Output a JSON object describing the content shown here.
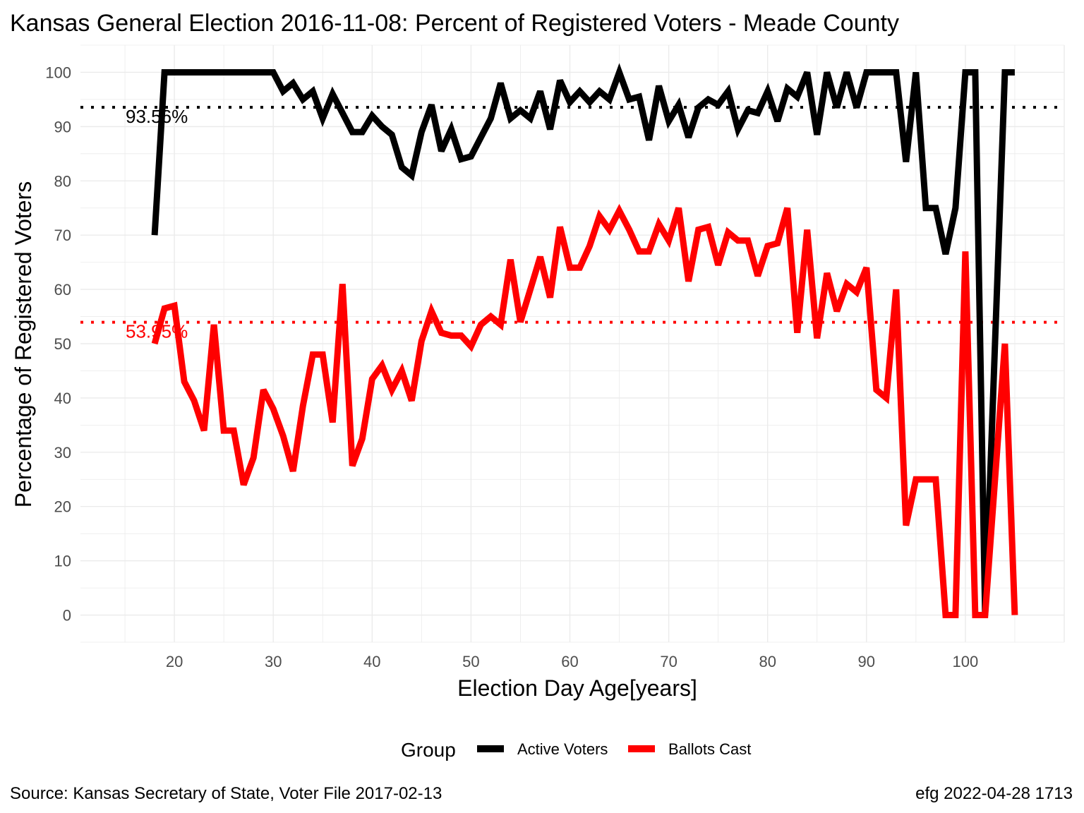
{
  "chart_data": {
    "type": "line",
    "title": "Kansas General Election 2016-11-08:  Percent of Registered Voters - Meade County",
    "xlabel": "Election Day Age[years]",
    "ylabel": "Percentage of Registered Voters",
    "xlim": [
      10.5,
      110
    ],
    "ylim": [
      -5,
      105
    ],
    "x_ticks": [
      20,
      30,
      40,
      50,
      60,
      70,
      80,
      90,
      100
    ],
    "y_ticks": [
      0,
      10,
      20,
      30,
      40,
      50,
      60,
      70,
      80,
      90,
      100
    ],
    "grid": true,
    "legend": {
      "title": "Group",
      "position": "bottom"
    },
    "series": [
      {
        "name": "Active Voters",
        "color": "#000000",
        "x": [
          18,
          19,
          20,
          21,
          22,
          23,
          24,
          25,
          26,
          27,
          28,
          29,
          30,
          31,
          32,
          33,
          34,
          35,
          36,
          37,
          38,
          39,
          40,
          41,
          42,
          43,
          44,
          45,
          46,
          47,
          48,
          49,
          50,
          51,
          52,
          53,
          54,
          55,
          56,
          57,
          58,
          59,
          60,
          61,
          62,
          63,
          64,
          65,
          66,
          67,
          68,
          69,
          70,
          71,
          72,
          73,
          74,
          75,
          76,
          77,
          78,
          79,
          80,
          81,
          82,
          83,
          84,
          85,
          86,
          87,
          88,
          89,
          90,
          91,
          92,
          93,
          94,
          95,
          96,
          97,
          98,
          99,
          100,
          101,
          102,
          103,
          104,
          105
        ],
        "values": [
          70,
          100,
          100,
          100,
          100,
          100,
          100,
          100,
          100,
          100,
          100,
          100,
          100,
          96.5,
          98,
          95,
          96.5,
          91.5,
          96,
          92.5,
          89,
          89,
          92,
          90,
          88.5,
          82.5,
          81,
          89,
          94,
          85.5,
          89.5,
          84,
          84.5,
          88,
          91.5,
          98,
          91.5,
          93,
          91.5,
          96.5,
          89.5,
          98.5,
          94.5,
          96.5,
          94.5,
          96.5,
          95,
          100,
          95,
          95.5,
          87.5,
          97.5,
          91,
          94,
          88,
          93.5,
          95,
          94,
          96.5,
          89.5,
          93,
          92.5,
          96.5,
          91,
          97,
          95.5,
          100,
          88.5,
          100,
          93.5,
          100,
          93.5,
          100,
          100,
          100,
          100,
          83.5,
          100,
          75,
          75,
          66.5,
          75,
          100,
          100,
          0,
          50,
          100,
          100
        ]
      },
      {
        "name": "Ballots Cast",
        "color": "#ff0000",
        "x": [
          18,
          19,
          20,
          21,
          22,
          23,
          24,
          25,
          26,
          27,
          28,
          29,
          30,
          31,
          32,
          33,
          34,
          35,
          36,
          37,
          38,
          39,
          40,
          41,
          42,
          43,
          44,
          45,
          46,
          47,
          48,
          49,
          50,
          51,
          52,
          53,
          54,
          55,
          56,
          57,
          58,
          59,
          60,
          61,
          62,
          63,
          64,
          65,
          66,
          67,
          68,
          69,
          70,
          71,
          72,
          73,
          74,
          75,
          76,
          77,
          78,
          79,
          80,
          81,
          82,
          83,
          84,
          85,
          86,
          87,
          88,
          89,
          90,
          91,
          92,
          93,
          94,
          95,
          96,
          97,
          98,
          99,
          100,
          101,
          102,
          103,
          104,
          105
        ],
        "values": [
          50,
          56.5,
          57,
          43,
          39.5,
          34,
          53.5,
          34,
          34,
          24,
          29,
          41.5,
          38,
          33,
          26.5,
          38.5,
          48,
          48,
          35.5,
          61,
          27.5,
          32.5,
          43.5,
          46,
          41.5,
          45,
          39.5,
          50.5,
          56,
          52,
          51.5,
          51.5,
          49.5,
          53.5,
          55,
          53.5,
          65.5,
          54,
          60,
          66,
          58.5,
          71.5,
          64,
          64,
          68,
          73.5,
          71,
          74.5,
          71,
          67,
          67,
          72,
          69,
          75,
          61.5,
          71,
          71.5,
          64.5,
          70.5,
          69,
          69,
          62.5,
          68,
          68.5,
          75,
          52,
          71,
          51,
          63,
          56,
          61,
          59.5,
          64,
          41.5,
          40,
          60,
          16.5,
          25,
          25,
          25,
          0,
          0,
          67,
          0,
          0,
          25,
          50,
          0
        ]
      }
    ],
    "reference_lines": [
      {
        "value": 93.56,
        "label": "93.56%",
        "color": "#000000"
      },
      {
        "value": 53.95,
        "label": "53.95%",
        "color": "#ff0000"
      }
    ]
  },
  "footer": {
    "source": "Source:  Kansas Secretary of State, Voter File  2017-02-13",
    "stamp": "efg 2022-04-28 1713"
  }
}
